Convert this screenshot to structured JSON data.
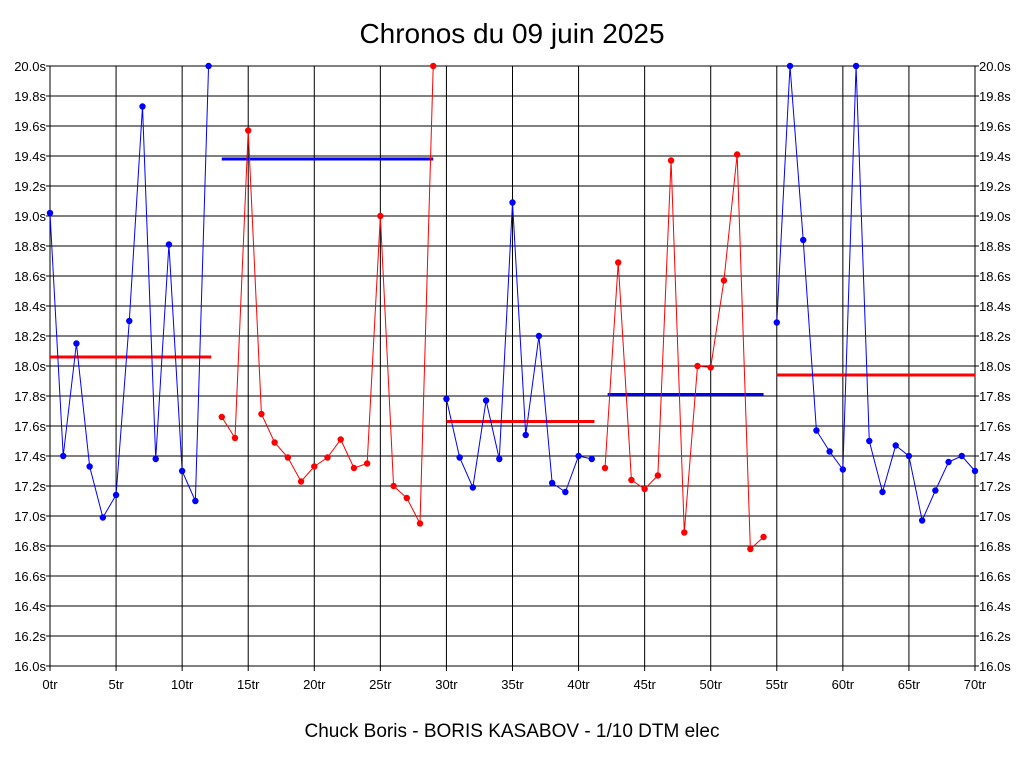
{
  "chart_data": {
    "type": "line",
    "title": "Chronos du 09 juin 2025",
    "subtitle": "Chuck Boris - BORIS KASABOV - 1/10 DTM elec",
    "xlim": [
      0,
      70
    ],
    "ylim": [
      16.0,
      20.0
    ],
    "x_ticks": [
      0,
      5,
      10,
      15,
      20,
      25,
      30,
      35,
      40,
      45,
      50,
      55,
      60,
      65,
      70
    ],
    "x_tick_labels": [
      "0tr",
      "5tr",
      "10tr",
      "15tr",
      "20tr",
      "25tr",
      "30tr",
      "35tr",
      "40tr",
      "45tr",
      "50tr",
      "55tr",
      "60tr",
      "65tr",
      "70tr"
    ],
    "y_ticks": [
      16.0,
      16.2,
      16.4,
      16.6,
      16.8,
      17.0,
      17.2,
      17.4,
      17.6,
      17.8,
      18.0,
      18.2,
      18.4,
      18.6,
      18.8,
      19.0,
      19.2,
      19.4,
      19.6,
      19.8,
      20.0
    ],
    "y_tick_labels": [
      "16.0s",
      "16.2s",
      "16.4s",
      "16.6s",
      "16.8s",
      "17.0s",
      "17.2s",
      "17.4s",
      "17.6s",
      "17.8s",
      "18.0s",
      "18.2s",
      "18.4s",
      "18.6s",
      "18.8s",
      "19.0s",
      "19.2s",
      "19.4s",
      "19.6s",
      "19.8s",
      "20.0s"
    ],
    "grid": true,
    "series": [
      {
        "color": "#0000ff",
        "x": [
          0,
          1,
          2,
          3,
          4,
          5,
          6,
          7,
          8,
          9,
          10,
          11,
          12
        ],
        "y": [
          19.02,
          17.4,
          18.15,
          17.33,
          16.99,
          17.14,
          18.3,
          19.73,
          17.38,
          18.81,
          17.3,
          17.1,
          20.0
        ]
      },
      {
        "color": "#ff0000",
        "x": [
          13,
          14,
          15,
          16,
          17,
          18,
          19,
          20,
          21,
          22,
          23,
          24,
          25,
          26,
          27,
          28,
          29
        ],
        "y": [
          17.66,
          17.52,
          19.57,
          17.68,
          17.49,
          17.39,
          17.23,
          17.33,
          17.39,
          17.51,
          17.32,
          17.35,
          19.0,
          17.2,
          17.12,
          16.95,
          20.0
        ]
      },
      {
        "color": "#0000ff",
        "x": [
          30,
          31,
          32,
          33,
          34,
          35,
          36,
          37,
          38,
          39,
          40,
          41
        ],
        "y": [
          17.78,
          17.39,
          17.19,
          17.77,
          17.38,
          19.09,
          17.54,
          18.2,
          17.22,
          17.16,
          17.4,
          17.38
        ]
      },
      {
        "color": "#ff0000",
        "x": [
          42,
          43,
          44,
          45,
          46,
          47,
          48,
          49,
          50,
          51,
          52,
          53,
          54
        ],
        "y": [
          17.32,
          18.69,
          17.24,
          17.18,
          17.27,
          19.37,
          16.89,
          18.0,
          17.99,
          18.57,
          19.41,
          16.78,
          16.86
        ]
      },
      {
        "color": "#0000ff",
        "x": [
          55,
          56,
          57,
          58,
          59,
          60,
          61,
          62,
          63,
          64,
          65,
          66,
          67,
          68,
          69,
          70
        ],
        "y": [
          18.29,
          20.0,
          18.84,
          17.57,
          17.43,
          17.31,
          20.0,
          17.5,
          17.16,
          17.47,
          17.4,
          16.97,
          17.17,
          17.36,
          17.4,
          17.3
        ]
      }
    ],
    "averages": [
      {
        "color": "#ff0000",
        "x_start": 0,
        "x_end": 12.2,
        "value": 18.06
      },
      {
        "color": "#0000ff",
        "x_start": 13,
        "x_end": 29,
        "value": 19.38
      },
      {
        "color": "#ff0000",
        "x_start": 30,
        "x_end": 41.2,
        "value": 17.63
      },
      {
        "color": "#0000ff",
        "x_start": 42.2,
        "x_end": 54,
        "value": 17.81
      },
      {
        "color": "#ff0000",
        "x_start": 55,
        "x_end": 70,
        "value": 17.94
      }
    ]
  }
}
